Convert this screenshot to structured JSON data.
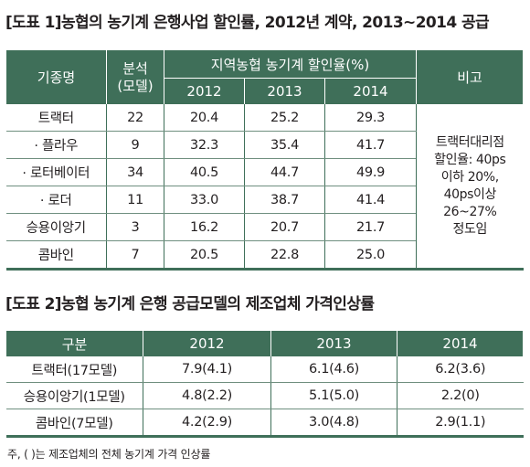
{
  "colors": {
    "header_bg": "#3f6f59",
    "header_text": "#ffffff",
    "text": "#231f20"
  },
  "table1": {
    "title": "[도표 1]농협의 농기계 은행사업 할인률, 2012년 계약, 2013~2014 공급",
    "headers": {
      "name": "기종명",
      "analysis_line1": "분석",
      "analysis_line2": "(모델)",
      "group": "지역농협 농기계 할인율(%)",
      "y2012": "2012",
      "y2013": "2013",
      "y2014": "2014",
      "remark": "비고"
    },
    "rows": [
      {
        "name": "트랙터",
        "models": "22",
        "y2012": "20.4",
        "y2013": "25.2",
        "y2014": "29.3"
      },
      {
        "name": "· 플라우",
        "models": "9",
        "y2012": "32.3",
        "y2013": "35.4",
        "y2014": "41.7"
      },
      {
        "name": "· 로터베이터",
        "models": "34",
        "y2012": "40.5",
        "y2013": "44.7",
        "y2014": "49.9"
      },
      {
        "name": "· 로더",
        "models": "11",
        "y2012": "33.0",
        "y2013": "38.7",
        "y2014": "41.4"
      },
      {
        "name": "승용이앙기",
        "models": "3",
        "y2012": "16.2",
        "y2013": "20.7",
        "y2014": "21.7"
      },
      {
        "name": "콤바인",
        "models": "7",
        "y2012": "20.5",
        "y2013": "22.8",
        "y2014": "25.0"
      }
    ],
    "remark_lines": [
      "트랙터대리점",
      "할인율: 40ps",
      "이하 20%,",
      "40ps이상",
      "26~27%",
      "정도임"
    ]
  },
  "table2": {
    "title": "[도표 2]농협 농기계 은행 공급모델의 제조업체 가격인상률",
    "headers": {
      "category": "구분",
      "y2012": "2012",
      "y2013": "2013",
      "y2014": "2014"
    },
    "rows": [
      {
        "name": "트랙터(17모델)",
        "y2012": "7.9(4.1)",
        "y2013": "6.1(4.6)",
        "y2014": "6.2(3.6)"
      },
      {
        "name": "승용이앙기(1모델)",
        "y2012": "4.8(2.2)",
        "y2013": "5.1(5.0)",
        "y2014": "2.2(0)"
      },
      {
        "name": "콤바인(7모델)",
        "y2012": "4.2(2.9)",
        "y2013": "3.0(4.8)",
        "y2014": "2.9(1.1)"
      }
    ]
  },
  "footnote": "주, ( )는 제조업체의 전체 농기계 가격 인상률"
}
